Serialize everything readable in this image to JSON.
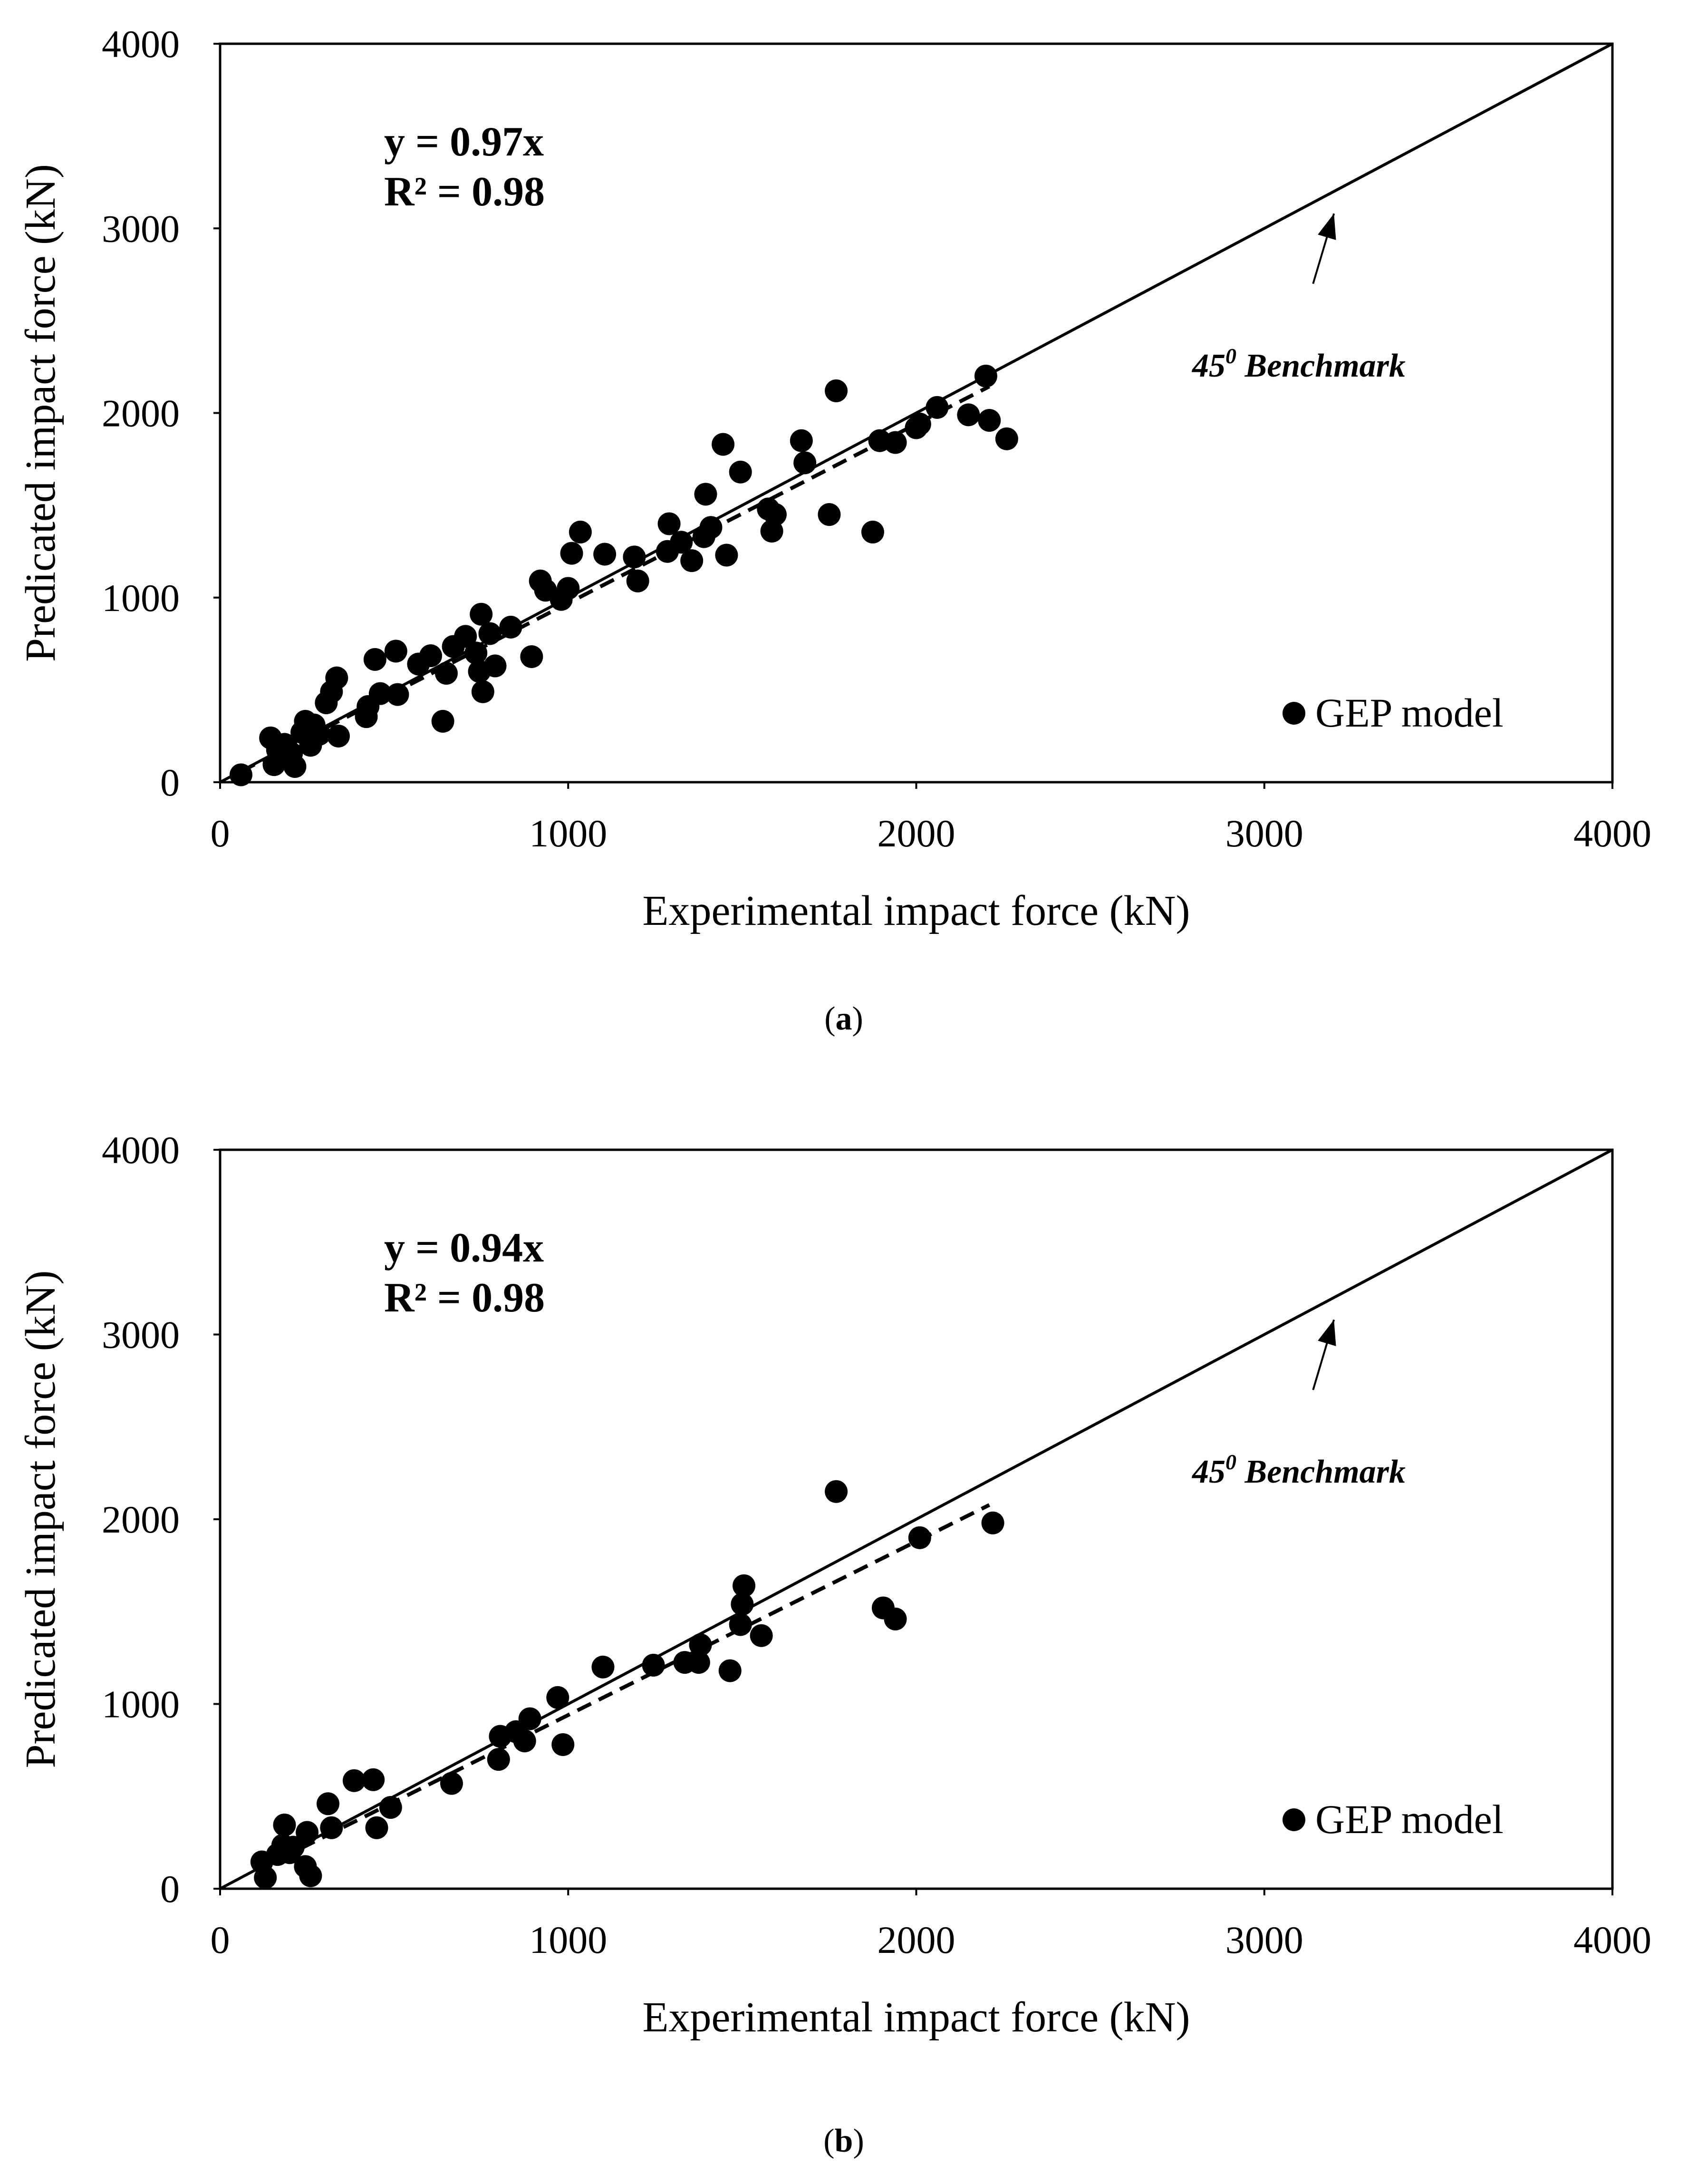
{
  "figure": {
    "colors": {
      "ink": "#000000",
      "background": "#ffffff"
    }
  },
  "chart_data": [
    {
      "panel_label": "a",
      "type": "scatter",
      "title": "",
      "xlabel": "Experimental impact force (kN)",
      "ylabel": "Predicated impact force (kN)",
      "xlim": [
        0,
        4000
      ],
      "ylim": [
        0,
        4000
      ],
      "xticks": [
        "0",
        "1000",
        "2000",
        "3000",
        "4000"
      ],
      "yticks": [
        "0",
        "1000",
        "2000",
        "3000",
        "4000"
      ],
      "grid": false,
      "legend": {
        "label": "GEP model",
        "position": "bottom-right"
      },
      "annotations": {
        "equation": "y = 0.97x",
        "r_squared": "R² = 0.98",
        "benchmark_label": "45",
        "benchmark_sup": "0",
        "benchmark_suffix": " Benchmark",
        "benchmark_arrow": {
          "from": [
            3140,
            2700
          ],
          "to": [
            3200,
            3080
          ]
        }
      },
      "reference_line": {
        "label": "45 degree line",
        "slope": 1,
        "x": [
          0,
          4000
        ]
      },
      "fit_line": {
        "slope": 0.97,
        "x": [
          60,
          2210
        ],
        "style": "dashed"
      },
      "series": [
        {
          "name": "GEP model",
          "points": [
            [
              60,
              40
            ],
            [
              145,
              240
            ],
            [
              155,
              95
            ],
            [
              165,
              175
            ],
            [
              185,
              205
            ],
            [
              205,
              155
            ],
            [
              215,
              85
            ],
            [
              235,
              270
            ],
            [
              245,
              330
            ],
            [
              260,
              200
            ],
            [
              270,
              310
            ],
            [
              285,
              260
            ],
            [
              305,
              430
            ],
            [
              320,
              490
            ],
            [
              335,
              565
            ],
            [
              340,
              250
            ],
            [
              420,
              355
            ],
            [
              425,
              410
            ],
            [
              445,
              665
            ],
            [
              460,
              480
            ],
            [
              505,
              710
            ],
            [
              510,
              475
            ],
            [
              570,
              640
            ],
            [
              605,
              685
            ],
            [
              640,
              330
            ],
            [
              650,
              590
            ],
            [
              670,
              735
            ],
            [
              705,
              790
            ],
            [
              735,
              700
            ],
            [
              745,
              600
            ],
            [
              750,
              910
            ],
            [
              755,
              490
            ],
            [
              775,
              805
            ],
            [
              790,
              630
            ],
            [
              835,
              840
            ],
            [
              895,
              680
            ],
            [
              920,
              1090
            ],
            [
              935,
              1040
            ],
            [
              980,
              990
            ],
            [
              1000,
              1050
            ],
            [
              1010,
              1240
            ],
            [
              1035,
              1355
            ],
            [
              1105,
              1235
            ],
            [
              1190,
              1220
            ],
            [
              1200,
              1090
            ],
            [
              1285,
              1250
            ],
            [
              1290,
              1400
            ],
            [
              1325,
              1300
            ],
            [
              1355,
              1200
            ],
            [
              1390,
              1330
            ],
            [
              1395,
              1560
            ],
            [
              1410,
              1380
            ],
            [
              1445,
              1830
            ],
            [
              1455,
              1230
            ],
            [
              1495,
              1680
            ],
            [
              1575,
              1480
            ],
            [
              1585,
              1360
            ],
            [
              1595,
              1450
            ],
            [
              1750,
              1450
            ],
            [
              1670,
              1850
            ],
            [
              1680,
              1730
            ],
            [
              1770,
              2120
            ],
            [
              1875,
              1355
            ],
            [
              1895,
              1850
            ],
            [
              1940,
              1840
            ],
            [
              2000,
              1920
            ],
            [
              2010,
              1940
            ],
            [
              2060,
              2030
            ],
            [
              2150,
              1990
            ],
            [
              2200,
              2200
            ],
            [
              2210,
              1960
            ],
            [
              2260,
              1860
            ]
          ]
        }
      ]
    },
    {
      "panel_label": "b",
      "type": "scatter",
      "title": "",
      "xlabel": "Experimental impact force (kN)",
      "ylabel": "Predicated impact force (kN)",
      "xlim": [
        0,
        4000
      ],
      "ylim": [
        0,
        4000
      ],
      "xticks": [
        "0",
        "1000",
        "2000",
        "3000",
        "4000"
      ],
      "yticks": [
        "0",
        "1000",
        "2000",
        "3000",
        "4000"
      ],
      "grid": false,
      "legend": {
        "label": "GEP model",
        "position": "bottom-right"
      },
      "annotations": {
        "equation": "y = 0.94x",
        "r_squared": "R² = 0.98",
        "benchmark_label": "45",
        "benchmark_sup": "0",
        "benchmark_suffix": " Benchmark",
        "benchmark_arrow": {
          "from": [
            3140,
            2700
          ],
          "to": [
            3200,
            3080
          ]
        }
      },
      "reference_line": {
        "label": "45 degree line",
        "slope": 1,
        "x": [
          0,
          4000
        ]
      },
      "fit_line": {
        "slope": 0.94,
        "x": [
          110,
          2210
        ],
        "style": "dashed"
      },
      "series": [
        {
          "name": "GEP model",
          "points": [
            [
              120,
              145
            ],
            [
              130,
              60
            ],
            [
              165,
              185
            ],
            [
              180,
              235
            ],
            [
              185,
              345
            ],
            [
              200,
              195
            ],
            [
              210,
              225
            ],
            [
              245,
              120
            ],
            [
              250,
              305
            ],
            [
              260,
              70
            ],
            [
              310,
              460
            ],
            [
              320,
              330
            ],
            [
              385,
              585
            ],
            [
              440,
              590
            ],
            [
              450,
              330
            ],
            [
              490,
              440
            ],
            [
              665,
              570
            ],
            [
              800,
              700
            ],
            [
              805,
              825
            ],
            [
              850,
              850
            ],
            [
              875,
              800
            ],
            [
              890,
              920
            ],
            [
              970,
              1035
            ],
            [
              985,
              780
            ],
            [
              1100,
              1200
            ],
            [
              1245,
              1210
            ],
            [
              1335,
              1225
            ],
            [
              1375,
              1225
            ],
            [
              1380,
              1320
            ],
            [
              1465,
              1180
            ],
            [
              1495,
              1430
            ],
            [
              1500,
              1540
            ],
            [
              1505,
              1640
            ],
            [
              1555,
              1370
            ],
            [
              1770,
              2150
            ],
            [
              1905,
              1520
            ],
            [
              1940,
              1460
            ],
            [
              2010,
              1900
            ],
            [
              2220,
              1980
            ]
          ]
        }
      ]
    }
  ]
}
